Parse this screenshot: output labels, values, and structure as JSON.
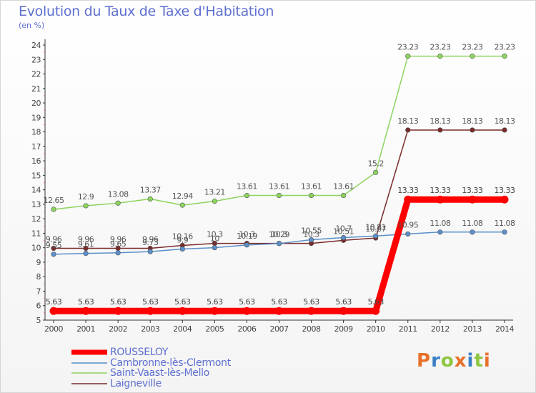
{
  "title": "Evolution du Taux de Taxe d'Habitation",
  "unit_label": "(en %)",
  "logo_text": "Proxiti",
  "logo_colors": [
    "#e8702a",
    "#3a7fc4",
    "#8dc63f",
    "#e8702a",
    "#3a7fc4",
    "#8dc63f",
    "#e8702a"
  ],
  "chart_data": {
    "type": "line",
    "x": [
      "2000",
      "2001",
      "2002",
      "2003",
      "2004",
      "2005",
      "2006",
      "2007",
      "2008",
      "2009",
      "2010",
      "2011",
      "2012",
      "2013",
      "2014"
    ],
    "ylim": [
      5,
      24
    ],
    "yticks": [
      "5",
      "6",
      "7",
      "8",
      "9",
      "10",
      "11",
      "12",
      "13",
      "14",
      "15",
      "16",
      "17",
      "18",
      "19",
      "20",
      "21",
      "22",
      "23",
      "24"
    ],
    "grid": false,
    "series": [
      {
        "name": "ROUSSELOY",
        "color": "#ff0000",
        "values": [
          5.63,
          5.63,
          5.63,
          5.63,
          5.63,
          5.63,
          5.63,
          5.63,
          5.63,
          5.63,
          5.63,
          13.33,
          13.33,
          13.33,
          13.33
        ],
        "labels": [
          "5.63",
          "5.63",
          "5.63",
          "5.63",
          "5.63",
          "5.63",
          "5.63",
          "5.63",
          "5.63",
          "5.63",
          "5.63",
          "13.33",
          "13.33",
          "13.33",
          "13.33"
        ]
      },
      {
        "name": "Cambronne-lès-Clermont",
        "color": "#5a8fc9",
        "values": [
          9.55,
          9.61,
          9.65,
          9.73,
          9.91,
          10.0,
          10.19,
          10.29,
          10.55,
          10.7,
          10.81,
          10.95,
          11.08,
          11.08,
          11.08
        ],
        "labels": [
          "9.55",
          "9.61",
          "9.65",
          "9.73",
          "9.9",
          "10",
          "10.19",
          "10.29",
          "10.55",
          "10.7",
          "10.81",
          "10.95",
          "11.08",
          "11.08",
          "11.08"
        ]
      },
      {
        "name": "Saint-Vaast-lès-Mello",
        "color": "#8dd45e",
        "values": [
          12.65,
          12.9,
          13.08,
          13.37,
          12.94,
          13.21,
          13.61,
          13.61,
          13.61,
          13.61,
          15.2,
          23.23,
          23.23,
          23.23,
          23.23
        ],
        "labels": [
          "12.65",
          "12.9",
          "13.08",
          "13.37",
          "12.94",
          "13.21",
          "13.61",
          "13.61",
          "13.61",
          "13.61",
          "15.2",
          "23.23",
          "23.23",
          "23.23",
          "23.23"
        ]
      },
      {
        "name": "Laigneville",
        "color": "#7a2b2b",
        "values": [
          9.96,
          9.96,
          9.96,
          9.96,
          10.16,
          10.3,
          10.3,
          10.3,
          10.3,
          10.51,
          10.67,
          18.13,
          18.13,
          18.13,
          18.13
        ],
        "labels": [
          "9.96",
          "9.96",
          "9.96",
          "9.96",
          "10.16",
          "10.3",
          "10.3",
          "10.3",
          "10.3",
          "10.51",
          "10.67",
          "18.13",
          "18.13",
          "18.13",
          "18.13"
        ]
      }
    ]
  }
}
